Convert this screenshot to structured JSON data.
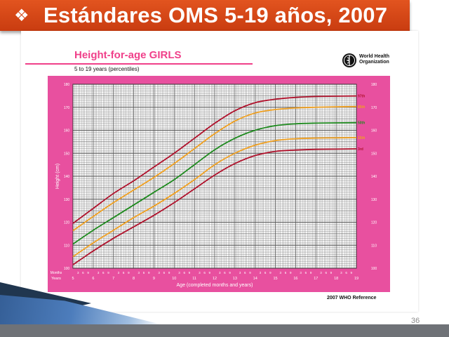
{
  "slide": {
    "title_bullet": "❖",
    "title": "Estándares OMS  5-19 años, 2007",
    "page_number": "36"
  },
  "chart_data": {
    "type": "line",
    "title": "Height-for-age  GIRLS",
    "subtitle": "5 to 19 years (percentiles)",
    "organization": "World Health Organization",
    "reference": "2007 WHO Reference",
    "xlabel": "Age (completed months and years)",
    "ylabel": "Height (cm)",
    "x_row_labels": [
      "Months",
      "Years"
    ],
    "xlim": [
      5,
      19
    ],
    "ylim": [
      100,
      180
    ],
    "year_ticks": [
      "5",
      "6",
      "7",
      "8",
      "9",
      "10",
      "11",
      "12",
      "13",
      "14",
      "15",
      "16",
      "17",
      "18",
      "19"
    ],
    "month_ticks": [
      "3",
      "6",
      "9"
    ],
    "y_ticks": [
      "100",
      "110",
      "120",
      "130",
      "140",
      "150",
      "160",
      "170",
      "180"
    ],
    "grid": true,
    "x": [
      5,
      6,
      7,
      8,
      9,
      10,
      11,
      12,
      13,
      14,
      15,
      16,
      17,
      18,
      19
    ],
    "series": [
      {
        "name": "97th",
        "color": "#b0122c",
        "values": [
          119.5,
          126,
          132.5,
          138,
          144,
          150,
          156.5,
          163,
          168.5,
          172,
          173.5,
          174.3,
          174.7,
          174.8,
          174.9
        ]
      },
      {
        "name": "85th",
        "color": "#f0a020",
        "values": [
          116.3,
          122.5,
          128.5,
          134,
          139.5,
          145.5,
          152,
          158.5,
          164,
          167.5,
          169,
          169.7,
          170,
          170.2,
          170.3
        ]
      },
      {
        "name": "50th",
        "color": "#1e8a1e",
        "values": [
          110.5,
          116.5,
          122,
          127.5,
          133,
          138.5,
          145,
          151.5,
          156.5,
          160,
          162,
          162.8,
          163.1,
          163.2,
          163.3
        ]
      },
      {
        "name": "15th",
        "color": "#f0a020",
        "values": [
          105,
          111,
          116.5,
          122,
          127,
          132.5,
          138.5,
          145,
          150,
          153.5,
          155.5,
          156.3,
          156.6,
          156.7,
          156.8
        ]
      },
      {
        "name": "3rd",
        "color": "#b0122c",
        "values": [
          101.5,
          107.5,
          113,
          118,
          123,
          128.5,
          134.5,
          140.5,
          145.5,
          149,
          150.8,
          151.4,
          151.7,
          151.8,
          151.9
        ]
      }
    ],
    "legend": "right-edge labels",
    "colors": {
      "background": "#e8509f",
      "plot_area": "#ffffff",
      "grid": "#555555"
    }
  }
}
